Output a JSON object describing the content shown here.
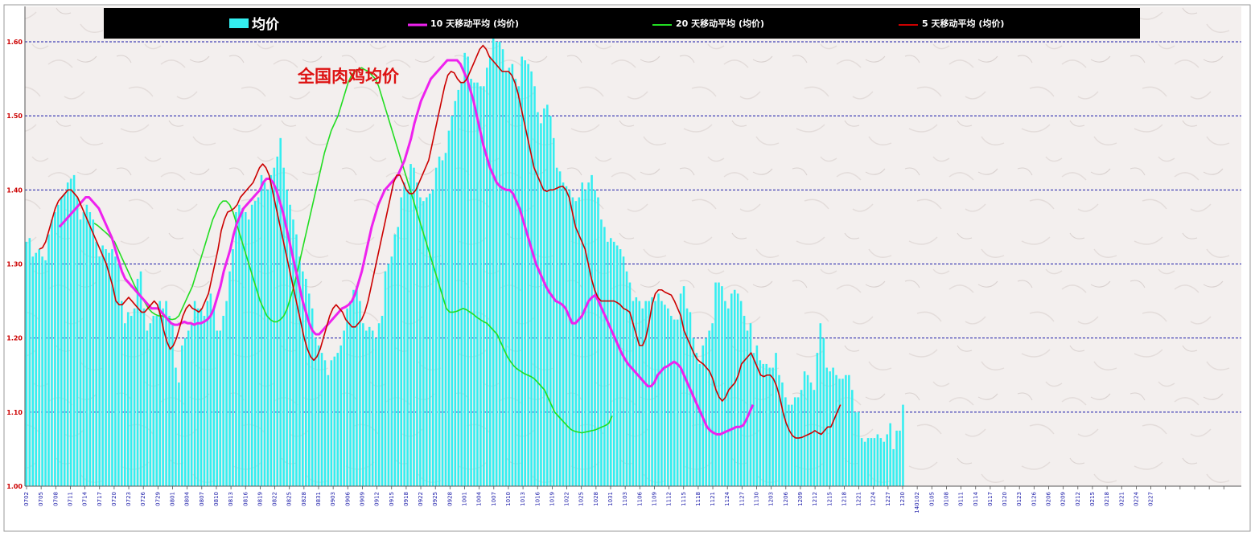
{
  "chart_data": {
    "type": "bar",
    "title": "全国肉鸡均价",
    "ylim": [
      1.0,
      1.6
    ],
    "yticks": [
      "1.00",
      "1.10",
      "1.20",
      "1.30",
      "1.40",
      "1.50",
      "1.60"
    ],
    "xtick_labels": [
      "0702",
      "0705",
      "0708",
      "0711",
      "0714",
      "0717",
      "0720",
      "0723",
      "0726",
      "0729",
      "0801",
      "0804",
      "0807",
      "0810",
      "0813",
      "0816",
      "0819",
      "0822",
      "0825",
      "0828",
      "0831",
      "0903",
      "0906",
      "0909",
      "0912",
      "0915",
      "0918",
      "0922",
      "0925",
      "0928",
      "1001",
      "1004",
      "1007",
      "1010",
      "1013",
      "1016",
      "1019",
      "1022",
      "1025",
      "1028",
      "1031",
      "1103",
      "1106",
      "1109",
      "1112",
      "1115",
      "1118",
      "1121",
      "1124",
      "1127",
      "1130",
      "1203",
      "1206",
      "1209",
      "1212",
      "1215",
      "1218",
      "1221",
      "1224",
      "1227",
      "1230",
      "140102",
      "0105",
      "0108",
      "0111",
      "0114",
      "0117",
      "0120",
      "0123",
      "0126",
      "0206",
      "0209",
      "0212",
      "0215",
      "0218",
      "0221",
      "0224",
      "0227"
    ],
    "legend": [
      {
        "label": "均价",
        "kind": "bar"
      },
      {
        "label": "10 天移动平均 (均价)",
        "kind": "line"
      },
      {
        "label": "20 天移动平均 (均价)",
        "kind": "line"
      },
      {
        "label": "5 天移动平均 (均价)",
        "kind": "line"
      }
    ],
    "colors": {
      "bar": "#33eef0",
      "ma5": "#cc0000",
      "ma10": "#ee22ee",
      "ma20": "#22dd22",
      "grid": "#1a1aa8",
      "tick_text": "#1a1aa8",
      "ytick_text": "#cc0000",
      "title": "#dd1111",
      "legend_bg": "#000000",
      "legend_text": "#ffffff"
    },
    "grid": true,
    "legend_position": "top",
    "series": [
      {
        "name": "均价",
        "values": [
          1.33,
          1.335,
          1.31,
          1.315,
          1.32,
          1.31,
          1.305,
          1.34,
          1.36,
          1.37,
          1.38,
          1.39,
          1.395,
          1.41,
          1.415,
          1.42,
          1.39,
          1.36,
          1.37,
          1.38,
          1.37,
          1.36,
          1.33,
          1.31,
          1.325,
          1.32,
          1.315,
          1.32,
          1.31,
          1.3,
          1.25,
          1.22,
          1.235,
          1.23,
          1.24,
          1.28,
          1.29,
          1.24,
          1.21,
          1.22,
          1.23,
          1.23,
          1.25,
          1.24,
          1.25,
          1.23,
          1.22,
          1.16,
          1.14,
          1.19,
          1.2,
          1.21,
          1.22,
          1.25,
          1.24,
          1.24,
          1.23,
          1.25,
          1.26,
          1.24,
          1.21,
          1.21,
          1.23,
          1.25,
          1.29,
          1.32,
          1.37,
          1.38,
          1.375,
          1.37,
          1.36,
          1.38,
          1.385,
          1.39,
          1.42,
          1.41,
          1.4,
          1.42,
          1.43,
          1.445,
          1.47,
          1.43,
          1.4,
          1.38,
          1.36,
          1.34,
          1.31,
          1.29,
          1.28,
          1.26,
          1.24,
          1.2,
          1.19,
          1.18,
          1.17,
          1.15,
          1.17,
          1.175,
          1.18,
          1.19,
          1.21,
          1.24,
          1.25,
          1.265,
          1.27,
          1.25,
          1.22,
          1.21,
          1.215,
          1.21,
          1.2,
          1.22,
          1.23,
          1.29,
          1.3,
          1.31,
          1.34,
          1.35,
          1.39,
          1.41,
          1.4,
          1.435,
          1.43,
          1.41,
          1.39,
          1.385,
          1.39,
          1.395,
          1.4,
          1.43,
          1.445,
          1.44,
          1.45,
          1.48,
          1.5,
          1.52,
          1.535,
          1.545,
          1.585,
          1.58,
          1.55,
          1.545,
          1.545,
          1.54,
          1.54,
          1.565,
          1.58,
          1.605,
          1.6,
          1.6,
          1.59,
          1.56,
          1.565,
          1.57,
          1.55,
          1.54,
          1.58,
          1.575,
          1.57,
          1.56,
          1.54,
          1.505,
          1.49,
          1.51,
          1.515,
          1.5,
          1.47,
          1.43,
          1.425,
          1.41,
          1.405,
          1.4,
          1.39,
          1.385,
          1.39,
          1.41,
          1.4,
          1.41,
          1.42,
          1.4,
          1.39,
          1.36,
          1.35,
          1.33,
          1.335,
          1.33,
          1.325,
          1.32,
          1.31,
          1.29,
          1.275,
          1.25,
          1.255,
          1.25,
          1.24,
          1.25,
          1.25,
          1.255,
          1.25,
          1.26,
          1.25,
          1.245,
          1.24,
          1.23,
          1.225,
          1.225,
          1.26,
          1.27,
          1.24,
          1.235,
          1.2,
          1.18,
          1.165,
          1.19,
          1.2,
          1.21,
          1.22,
          1.275,
          1.275,
          1.27,
          1.25,
          1.24,
          1.26,
          1.265,
          1.26,
          1.25,
          1.23,
          1.21,
          1.22,
          1.18,
          1.19,
          1.17,
          1.165,
          1.165,
          1.16,
          1.16,
          1.18,
          1.15,
          1.14,
          1.12,
          1.11,
          1.11,
          1.12,
          1.12,
          1.13,
          1.155,
          1.15,
          1.14,
          1.13,
          1.18,
          1.22,
          1.2,
          1.16,
          1.155,
          1.16,
          1.15,
          1.145,
          1.145,
          1.15,
          1.15,
          1.13,
          1.1,
          1.1,
          1.065,
          1.06,
          1.065,
          1.065,
          1.065,
          1.07,
          1.065,
          1.06,
          1.07,
          1.085,
          1.05,
          1.075,
          1.075,
          1.11
        ]
      },
      {
        "name": "5 天移动平均 (均价)",
        "values": [
          null,
          null,
          null,
          null,
          1.32,
          1.322,
          1.33,
          1.345,
          1.36,
          1.375,
          1.385,
          1.39,
          1.395,
          1.4,
          1.4,
          1.395,
          1.39,
          1.38,
          1.37,
          1.36,
          1.35,
          1.34,
          1.33,
          1.32,
          1.31,
          1.3,
          1.285,
          1.27,
          1.25,
          1.245,
          1.245,
          1.25,
          1.255,
          1.25,
          1.245,
          1.24,
          1.235,
          1.235,
          1.24,
          1.245,
          1.25,
          1.245,
          1.23,
          1.21,
          1.195,
          1.185,
          1.19,
          1.2,
          1.215,
          1.23,
          1.24,
          1.245,
          1.24,
          1.238,
          1.235,
          1.24,
          1.25,
          1.26,
          1.28,
          1.3,
          1.32,
          1.345,
          1.36,
          1.37,
          1.372,
          1.375,
          1.38,
          1.39,
          1.395,
          1.4,
          1.405,
          1.41,
          1.42,
          1.43,
          1.435,
          1.43,
          1.42,
          1.4,
          1.38,
          1.36,
          1.34,
          1.32,
          1.3,
          1.28,
          1.26,
          1.24,
          1.22,
          1.2,
          1.185,
          1.175,
          1.17,
          1.175,
          1.185,
          1.2,
          1.215,
          1.23,
          1.24,
          1.245,
          1.24,
          1.235,
          1.225,
          1.22,
          1.215,
          1.215,
          1.22,
          1.225,
          1.235,
          1.25,
          1.27,
          1.29,
          1.31,
          1.33,
          1.35,
          1.37,
          1.39,
          1.41,
          1.42,
          1.42,
          1.41,
          1.4,
          1.395,
          1.395,
          1.4,
          1.41,
          1.42,
          1.43,
          1.44,
          1.46,
          1.48,
          1.5,
          1.52,
          1.54,
          1.555,
          1.56,
          1.558,
          1.55,
          1.545,
          1.545,
          1.55,
          1.56,
          1.57,
          1.58,
          1.59,
          1.595,
          1.59,
          1.58,
          1.575,
          1.57,
          1.565,
          1.56,
          1.56,
          1.56,
          1.555,
          1.545,
          1.53,
          1.51,
          1.49,
          1.47,
          1.45,
          1.43,
          1.42,
          1.41,
          1.4,
          1.398,
          1.4,
          1.4,
          1.402,
          1.404,
          1.405,
          1.4,
          1.39,
          1.37,
          1.35,
          1.34,
          1.33,
          1.32,
          1.3,
          1.28,
          1.265,
          1.255,
          1.25,
          1.25,
          1.25,
          1.25,
          1.25,
          1.248,
          1.245,
          1.24,
          1.238,
          1.235,
          1.22,
          1.205,
          1.19,
          1.19,
          1.2,
          1.22,
          1.245,
          1.26,
          1.265,
          1.265,
          1.262,
          1.26,
          1.258,
          1.25,
          1.24,
          1.23,
          1.21,
          1.2,
          1.19,
          1.18,
          1.172,
          1.168,
          1.165,
          1.16,
          1.155,
          1.145,
          1.13,
          1.12,
          1.115,
          1.12,
          1.13,
          1.135,
          1.14,
          1.15,
          1.165,
          1.17,
          1.175,
          1.18,
          1.17,
          1.16,
          1.15,
          1.148,
          1.15,
          1.15,
          1.145,
          1.135,
          1.12,
          1.1,
          1.085,
          1.075,
          1.068,
          1.065,
          1.065,
          1.066,
          1.068,
          1.07,
          1.072,
          1.075,
          1.072,
          1.07,
          1.075,
          1.08,
          1.08,
          1.09,
          1.1,
          1.11
        ]
      },
      {
        "name": "10 天移动平均 (均价)",
        "values": [
          null,
          null,
          null,
          null,
          null,
          null,
          null,
          null,
          null,
          null,
          1.35,
          1.355,
          1.36,
          1.365,
          1.37,
          1.375,
          1.38,
          1.385,
          1.39,
          1.39,
          1.385,
          1.38,
          1.375,
          1.365,
          1.355,
          1.345,
          1.335,
          1.32,
          1.305,
          1.29,
          1.28,
          1.275,
          1.27,
          1.265,
          1.26,
          1.255,
          1.25,
          1.245,
          1.24,
          1.24,
          1.24,
          1.235,
          1.23,
          1.225,
          1.22,
          1.218,
          1.218,
          1.22,
          1.222,
          1.22,
          1.22,
          1.218,
          1.22,
          1.22,
          1.222,
          1.225,
          1.23,
          1.24,
          1.255,
          1.27,
          1.29,
          1.305,
          1.32,
          1.34,
          1.355,
          1.365,
          1.375,
          1.38,
          1.385,
          1.39,
          1.395,
          1.4,
          1.41,
          1.415,
          1.415,
          1.41,
          1.4,
          1.385,
          1.37,
          1.35,
          1.33,
          1.31,
          1.29,
          1.27,
          1.25,
          1.235,
          1.22,
          1.21,
          1.205,
          1.205,
          1.21,
          1.215,
          1.22,
          1.225,
          1.23,
          1.235,
          1.24,
          1.242,
          1.245,
          1.25,
          1.26,
          1.275,
          1.29,
          1.31,
          1.33,
          1.35,
          1.365,
          1.38,
          1.39,
          1.4,
          1.405,
          1.41,
          1.415,
          1.42,
          1.43,
          1.44,
          1.455,
          1.47,
          1.49,
          1.505,
          1.52,
          1.53,
          1.54,
          1.55,
          1.555,
          1.56,
          1.565,
          1.57,
          1.575,
          1.575,
          1.575,
          1.575,
          1.57,
          1.56,
          1.55,
          1.535,
          1.52,
          1.5,
          1.48,
          1.46,
          1.445,
          1.43,
          1.42,
          1.41,
          1.405,
          1.402,
          1.4,
          1.4,
          1.395,
          1.385,
          1.375,
          1.36,
          1.345,
          1.33,
          1.315,
          1.3,
          1.29,
          1.28,
          1.27,
          1.262,
          1.256,
          1.25,
          1.248,
          1.245,
          1.24,
          1.23,
          1.22,
          1.22,
          1.225,
          1.23,
          1.24,
          1.25,
          1.255,
          1.258,
          1.25,
          1.24,
          1.23,
          1.22,
          1.21,
          1.2,
          1.19,
          1.18,
          1.172,
          1.165,
          1.16,
          1.155,
          1.15,
          1.145,
          1.14,
          1.135,
          1.135,
          1.14,
          1.15,
          1.155,
          1.16,
          1.162,
          1.165,
          1.168,
          1.165,
          1.16,
          1.15,
          1.14,
          1.13,
          1.12,
          1.11,
          1.1,
          1.09,
          1.08,
          1.075,
          1.072,
          1.07,
          1.07,
          1.072,
          1.074,
          1.076,
          1.078,
          1.08,
          1.08,
          1.082,
          1.09,
          1.1,
          1.11
        ]
      },
      {
        "name": "20 天移动平均 (均价)",
        "values": [
          null,
          null,
          null,
          null,
          null,
          null,
          null,
          null,
          null,
          null,
          null,
          null,
          null,
          null,
          null,
          null,
          null,
          null,
          null,
          null,
          1.355,
          1.352,
          1.348,
          1.344,
          1.34,
          1.335,
          1.33,
          1.32,
          1.31,
          1.3,
          1.29,
          1.28,
          1.27,
          1.262,
          1.255,
          1.248,
          1.24,
          1.235,
          1.232,
          1.23,
          1.23,
          1.228,
          1.226,
          1.225,
          1.226,
          1.23,
          1.24,
          1.25,
          1.26,
          1.27,
          1.285,
          1.3,
          1.315,
          1.33,
          1.345,
          1.36,
          1.37,
          1.38,
          1.385,
          1.385,
          1.38,
          1.37,
          1.355,
          1.34,
          1.325,
          1.31,
          1.295,
          1.28,
          1.265,
          1.25,
          1.24,
          1.23,
          1.225,
          1.222,
          1.222,
          1.225,
          1.23,
          1.24,
          1.255,
          1.27,
          1.29,
          1.31,
          1.33,
          1.35,
          1.37,
          1.39,
          1.41,
          1.43,
          1.45,
          1.465,
          1.48,
          1.49,
          1.5,
          1.515,
          1.53,
          1.545,
          1.555,
          1.56,
          1.562,
          1.565,
          1.562,
          1.56,
          1.555,
          1.55,
          1.54,
          1.525,
          1.51,
          1.495,
          1.48,
          1.465,
          1.45,
          1.435,
          1.42,
          1.405,
          1.39,
          1.375,
          1.36,
          1.345,
          1.33,
          1.315,
          1.3,
          1.285,
          1.27,
          1.255,
          1.24,
          1.235,
          1.235,
          1.236,
          1.238,
          1.24,
          1.238,
          1.235,
          1.232,
          1.228,
          1.225,
          1.222,
          1.22,
          1.215,
          1.21,
          1.205,
          1.195,
          1.185,
          1.175,
          1.168,
          1.162,
          1.158,
          1.155,
          1.152,
          1.15,
          1.148,
          1.145,
          1.14,
          1.135,
          1.13,
          1.12,
          1.11,
          1.1,
          1.095,
          1.09,
          1.085,
          1.08,
          1.076,
          1.074,
          1.073,
          1.072,
          1.073,
          1.074,
          1.075,
          1.076,
          1.078,
          1.08,
          1.082,
          1.085,
          1.095
        ]
      }
    ]
  }
}
